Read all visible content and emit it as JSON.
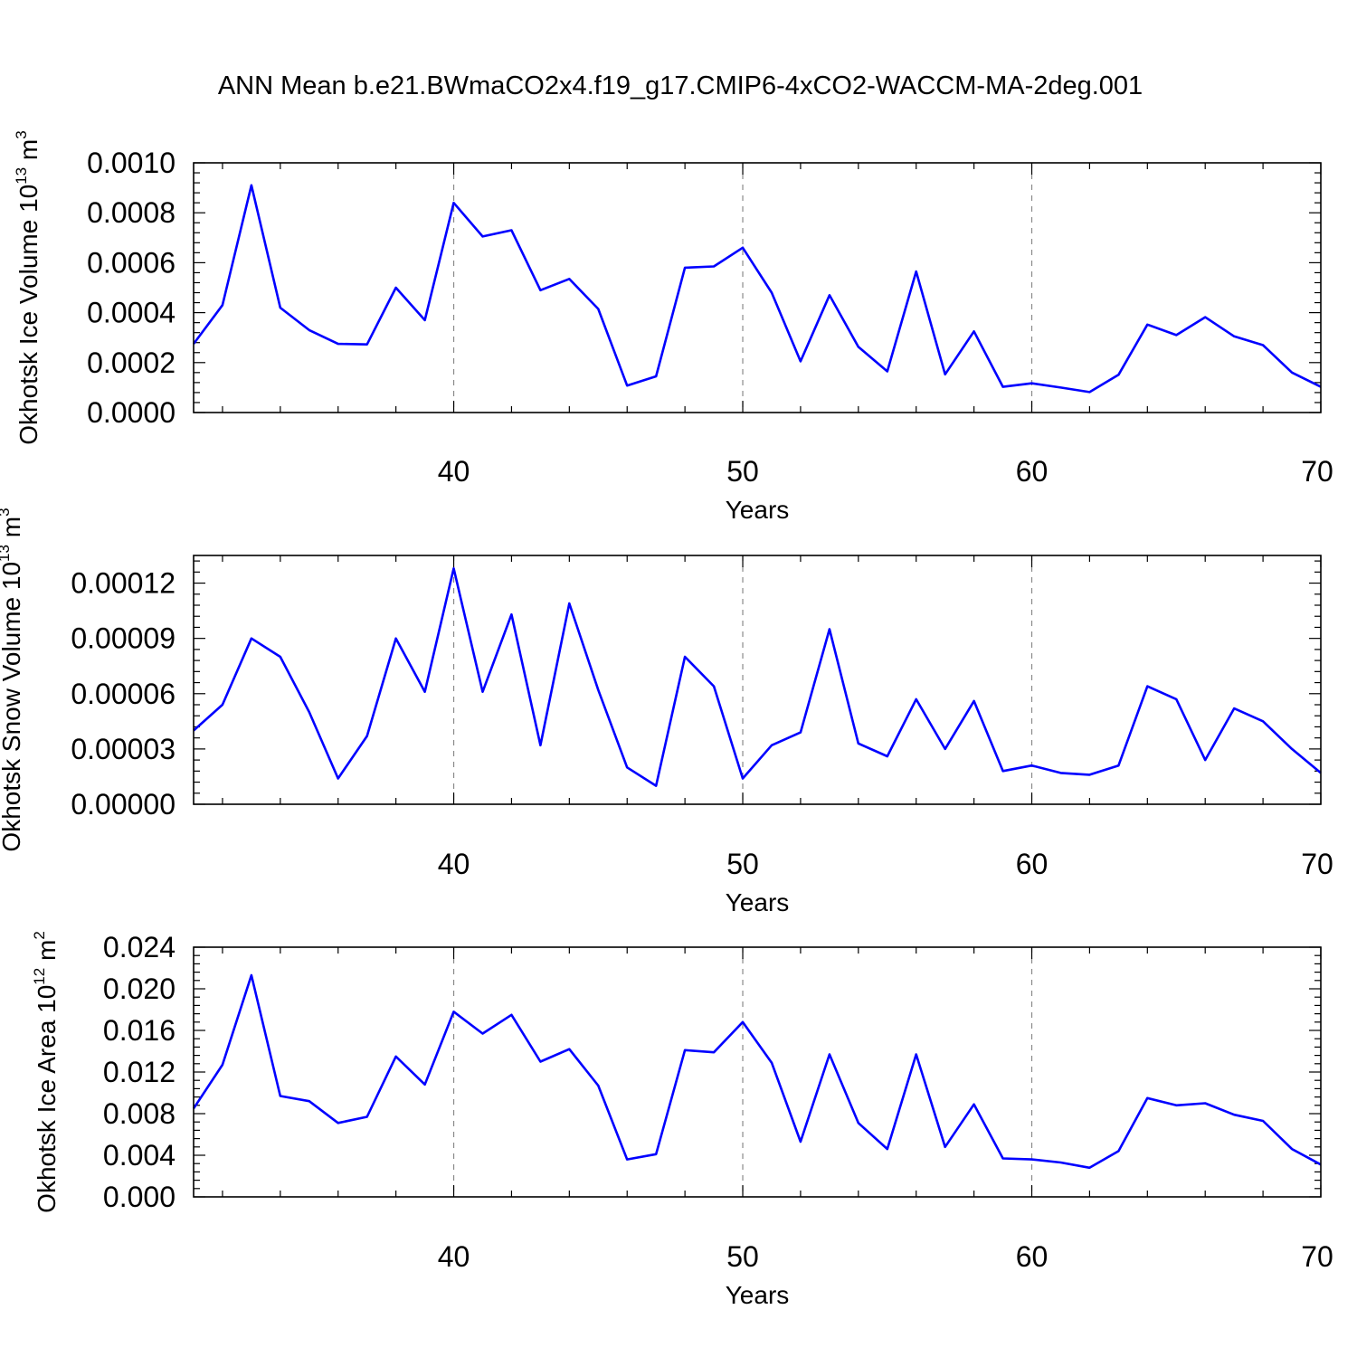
{
  "title": "ANN Mean b.e21.BWmaCO2x4.f19_g17.CMIP6-4xCO2-WACCM-MA-2deg.001",
  "line_color": "#0000ff",
  "chart_data": [
    {
      "type": "line",
      "ylabel": "Okhotsk Ice Volume 10",
      "ylabel_exponent": "13",
      "ylabel_unit": " m",
      "ylabel_unit_exponent": "3",
      "xlabel": "Years",
      "xlim": [
        31,
        70
      ],
      "ylim": [
        0,
        0.001
      ],
      "xticks": [
        40,
        50,
        60,
        70
      ],
      "xtick_labels": [
        "40",
        "50",
        "60",
        "70"
      ],
      "yticks": [
        0,
        0.0002,
        0.0004,
        0.0006,
        0.0008,
        0.001
      ],
      "ytick_labels": [
        "0.0000",
        "0.0002",
        "0.0004",
        "0.0006",
        "0.0008",
        "0.0010"
      ],
      "grid_x": [
        40,
        50,
        60
      ],
      "x": [
        31,
        32,
        33,
        34,
        35,
        36,
        37,
        38,
        39,
        40,
        41,
        42,
        43,
        44,
        45,
        46,
        47,
        48,
        49,
        50,
        51,
        52,
        53,
        54,
        55,
        56,
        57,
        58,
        59,
        60,
        61,
        62,
        63,
        64,
        65,
        66,
        67,
        68,
        69,
        70
      ],
      "values": [
        0.000275,
        0.00043,
        0.00091,
        0.00042,
        0.00033,
        0.000275,
        0.000273,
        0.0005,
        0.00037,
        0.00084,
        0.000705,
        0.00073,
        0.00049,
        0.000535,
        0.000415,
        0.000108,
        0.000145,
        0.00058,
        0.000585,
        0.00066,
        0.00048,
        0.000205,
        0.00047,
        0.000263,
        0.000165,
        0.000565,
        0.000153,
        0.000325,
        0.000103,
        0.000117,
        0.0001,
        8.2e-05,
        0.000151,
        0.000352,
        0.00031,
        0.000382,
        0.000305,
        0.00027,
        0.00016,
        0.000103
      ]
    },
    {
      "type": "line",
      "ylabel": "Okhotsk Snow Volume 10",
      "ylabel_exponent": "13",
      "ylabel_unit": " m",
      "ylabel_unit_exponent": "3",
      "xlabel": "Years",
      "xlim": [
        31,
        70
      ],
      "ylim": [
        0,
        0.000135
      ],
      "xticks": [
        40,
        50,
        60,
        70
      ],
      "xtick_labels": [
        "40",
        "50",
        "60",
        "70"
      ],
      "yticks": [
        0,
        3e-05,
        6e-05,
        9e-05,
        0.00012
      ],
      "ytick_labels": [
        "0.00000",
        "0.00003",
        "0.00006",
        "0.00009",
        "0.00012"
      ],
      "grid_x": [
        40,
        50,
        60
      ],
      "x": [
        31,
        32,
        33,
        34,
        35,
        36,
        37,
        38,
        39,
        40,
        41,
        42,
        43,
        44,
        45,
        46,
        47,
        48,
        49,
        50,
        51,
        52,
        53,
        54,
        55,
        56,
        57,
        58,
        59,
        60,
        61,
        62,
        63,
        64,
        65,
        66,
        67,
        68,
        69,
        70
      ],
      "values": [
        4e-05,
        5.4e-05,
        9e-05,
        8e-05,
        5e-05,
        1.4e-05,
        3.7e-05,
        9e-05,
        6.1e-05,
        0.000128,
        6.1e-05,
        0.000103,
        3.2e-05,
        0.000109,
        6.2e-05,
        2e-05,
        1e-05,
        8e-05,
        6.4e-05,
        1.4e-05,
        3.2e-05,
        3.9e-05,
        9.5e-05,
        3.3e-05,
        2.6e-05,
        5.7e-05,
        3e-05,
        5.6e-05,
        1.8e-05,
        2.1e-05,
        1.7e-05,
        1.6e-05,
        2.1e-05,
        6.4e-05,
        5.7e-05,
        2.4e-05,
        5.2e-05,
        4.5e-05,
        3e-05,
        1.7e-05
      ]
    },
    {
      "type": "line",
      "ylabel": "Okhotsk Ice Area 10",
      "ylabel_exponent": "12",
      "ylabel_unit": " m",
      "ylabel_unit_exponent": "2",
      "xlabel": "Years",
      "xlim": [
        31,
        70
      ],
      "ylim": [
        0,
        0.024
      ],
      "xticks": [
        40,
        50,
        60,
        70
      ],
      "xtick_labels": [
        "40",
        "50",
        "60",
        "70"
      ],
      "yticks": [
        0,
        0.004,
        0.008,
        0.012,
        0.016,
        0.02,
        0.024
      ],
      "ytick_labels": [
        "0.000",
        "0.004",
        "0.008",
        "0.012",
        "0.016",
        "0.020",
        "0.024"
      ],
      "grid_x": [
        40,
        50,
        60
      ],
      "x": [
        31,
        32,
        33,
        34,
        35,
        36,
        37,
        38,
        39,
        40,
        41,
        42,
        43,
        44,
        45,
        46,
        47,
        48,
        49,
        50,
        51,
        52,
        53,
        54,
        55,
        56,
        57,
        58,
        59,
        60,
        61,
        62,
        63,
        64,
        65,
        66,
        67,
        68,
        69,
        70
      ],
      "values": [
        0.0085,
        0.0127,
        0.0213,
        0.0097,
        0.0092,
        0.0071,
        0.0077,
        0.0135,
        0.0108,
        0.0178,
        0.0157,
        0.0175,
        0.013,
        0.0142,
        0.0107,
        0.0036,
        0.0041,
        0.0141,
        0.0139,
        0.0168,
        0.0129,
        0.0053,
        0.0137,
        0.0071,
        0.0046,
        0.0137,
        0.0048,
        0.0089,
        0.0037,
        0.0036,
        0.0033,
        0.0028,
        0.0044,
        0.0095,
        0.0088,
        0.009,
        0.0079,
        0.0073,
        0.0046,
        0.0031
      ]
    }
  ]
}
